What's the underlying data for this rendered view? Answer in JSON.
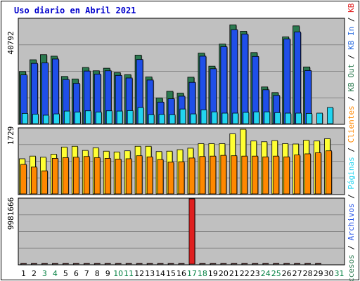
{
  "title": "Uso diario en Abril 2021",
  "colors": {
    "frame": "#ffffff",
    "panel": "#c0c0c0",
    "grid": "#888888",
    "weekday_label": "#000000",
    "weekend_label": "#008040",
    "accesos": "#2b7a50",
    "archivos": "#1f4fe8",
    "paginas": "#22d4f0",
    "clientes": "#ffff33",
    "kb_out": "#ff8800",
    "kb_in": "#3070e0",
    "kb_f": "#e02020"
  },
  "chart_data": [
    {
      "type": "bar",
      "panel": "top",
      "y_max_label": "40792",
      "ylim": [
        0,
        40792
      ],
      "categories": [
        "1",
        "2",
        "3",
        "4",
        "5",
        "6",
        "7",
        "8",
        "9",
        "10",
        "11",
        "12",
        "13",
        "14",
        "15",
        "16",
        "17",
        "18",
        "19",
        "20",
        "21",
        "22",
        "23",
        "24",
        "25",
        "26",
        "27",
        "28",
        "29",
        "30",
        "31"
      ],
      "weekend_days": [
        3,
        4,
        10,
        11,
        17,
        18,
        24,
        25,
        31
      ],
      "series": [
        {
          "name": "Accesos",
          "color_key": "accesos",
          "values": [
            20300,
            24900,
            26900,
            26300,
            18400,
            17400,
            21900,
            20600,
            21600,
            19900,
            19100,
            26700,
            18200,
            10000,
            12600,
            11900,
            18100,
            27500,
            22400,
            31000,
            38500,
            36000,
            27700,
            14300,
            12100,
            33800,
            38100,
            22100,
            0,
            0,
            0
          ]
        },
        {
          "name": "Archivos",
          "color_key": "archivos",
          "values": [
            19000,
            23500,
            23700,
            25200,
            17200,
            15700,
            20500,
            19300,
            20600,
            18800,
            17800,
            25000,
            17000,
            8400,
            9700,
            10700,
            16100,
            26300,
            21400,
            30000,
            36600,
            34900,
            26200,
            13200,
            11000,
            33000,
            35700,
            20700,
            0,
            0,
            0
          ]
        },
        {
          "name": "Paginas",
          "color_key": "paginas",
          "values": [
            4000,
            3700,
            3300,
            3800,
            4900,
            4500,
            5000,
            4500,
            5000,
            4900,
            5100,
            6300,
            3500,
            3600,
            3500,
            5700,
            3800,
            5400,
            4600,
            4100,
            4100,
            4400,
            4600,
            4600,
            4300,
            4100,
            4100,
            4000,
            4100,
            6300,
            0
          ]
        }
      ]
    },
    {
      "type": "bar",
      "panel": "middle",
      "y_max_label": "1729",
      "ylim": [
        0,
        1729
      ],
      "categories": [
        "1",
        "2",
        "3",
        "4",
        "5",
        "6",
        "7",
        "8",
        "9",
        "10",
        "11",
        "12",
        "13",
        "14",
        "15",
        "16",
        "17",
        "18",
        "19",
        "20",
        "21",
        "22",
        "23",
        "24",
        "25",
        "26",
        "27",
        "28",
        "29",
        "30",
        "31"
      ],
      "series": [
        {
          "name": "Clientes",
          "color_key": "clientes",
          "values": [
            930,
            1000,
            970,
            1050,
            1240,
            1260,
            1150,
            1220,
            1130,
            1110,
            1140,
            1260,
            1260,
            1120,
            1130,
            1170,
            1210,
            1330,
            1330,
            1330,
            1590,
            1710,
            1400,
            1380,
            1410,
            1330,
            1320,
            1420,
            1400,
            1460,
            0
          ]
        },
        {
          "name": "KB Out",
          "color_key": "kb_out",
          "values": [
            780,
            710,
            610,
            940,
            960,
            970,
            990,
            960,
            940,
            920,
            930,
            1010,
            980,
            910,
            840,
            850,
            950,
            990,
            1000,
            1020,
            1010,
            1000,
            1000,
            980,
            1000,
            980,
            1030,
            1060,
            1090,
            1140,
            0
          ]
        }
      ]
    },
    {
      "type": "bar",
      "panel": "bottom",
      "y_max_label": "9981666",
      "ylim": [
        0,
        9981666
      ],
      "categories": [
        "1",
        "2",
        "3",
        "4",
        "5",
        "6",
        "7",
        "8",
        "9",
        "10",
        "11",
        "12",
        "13",
        "14",
        "15",
        "16",
        "17",
        "18",
        "19",
        "20",
        "21",
        "22",
        "23",
        "24",
        "25",
        "26",
        "27",
        "28",
        "29",
        "30",
        "31"
      ],
      "series": [
        {
          "name": "KB F",
          "color_key": "kb_f",
          "values": [
            2600,
            6400,
            4600,
            5100,
            3900,
            1800,
            3500,
            3100,
            900,
            1000,
            2600,
            3200,
            900,
            1200,
            4700,
            3900,
            9981666,
            6700,
            4300,
            2400,
            3600,
            6300,
            4800,
            3300,
            6500,
            3000,
            3700,
            3600,
            2700,
            0,
            0
          ]
        },
        {
          "name": "KB In",
          "color_key": "kb_in",
          "values": [
            0,
            0,
            0,
            0,
            0,
            0,
            0,
            0,
            0,
            0,
            0,
            0,
            0,
            0,
            0,
            0,
            0,
            0,
            0,
            0,
            0,
            0,
            0,
            0,
            0,
            0,
            0,
            0,
            0,
            0,
            0
          ]
        }
      ]
    }
  ],
  "right_labels": [
    {
      "text": "Accesos",
      "color_key": "accesos"
    },
    {
      "text": " / ",
      "color_key": "weekday_label"
    },
    {
      "text": "Archivos",
      "color_key": "archivos"
    },
    {
      "text": " / ",
      "color_key": "weekday_label"
    },
    {
      "text": "Páginas",
      "color_key": "paginas"
    },
    {
      "text": " / ",
      "color_key": "weekday_label"
    },
    {
      "text": "Clientes",
      "color_key": "kb_out"
    },
    {
      "text": " / ",
      "color_key": "weekday_label"
    },
    {
      "text": "KB Out",
      "color_key": "accesos"
    },
    {
      "text": " / ",
      "color_key": "weekday_label"
    },
    {
      "text": "KB In",
      "color_key": "kb_in"
    },
    {
      "text": " / ",
      "color_key": "weekday_label"
    },
    {
      "text": "KB F",
      "color_key": "kb_f"
    }
  ]
}
